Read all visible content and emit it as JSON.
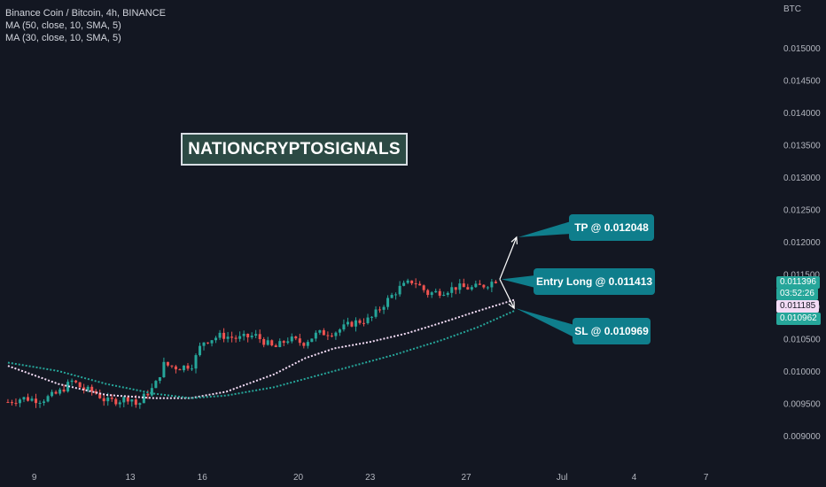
{
  "legend": {
    "title": "Binance Coin / Bitcoin, 4h, BINANCE",
    "ma50": "MA (50, close, 10, SMA, 5)",
    "ma30": "MA (30, close, 10, SMA, 5)"
  },
  "watermark": "NATIONCRYPTOSIGNALS",
  "callouts": {
    "tp": "TP @ 0.012048",
    "entry": "Entry Long @ 0.011413",
    "sl": "SL @ 0.010969"
  },
  "price_tags": {
    "current_price": "0.011396",
    "countdown": "03:52:26",
    "ma_pink": "0.011185",
    "ma_green": "0.010962"
  },
  "colors": {
    "background": "#131722",
    "up": "#26a69a",
    "down": "#ef5350",
    "ma_pink": "#f3dcf5",
    "ma_green": "#26a69a",
    "callout": "#0f7e8c"
  },
  "chart_data": {
    "type": "candlestick",
    "title": "Binance Coin / Bitcoin, 4h, BINANCE",
    "currency": "BTC",
    "ylim": [
      0.0087,
      0.0158
    ],
    "y_ticks": [
      "0.009000",
      "0.009500",
      "0.010000",
      "0.010500",
      "0.011000",
      "0.011500",
      "0.012000",
      "0.012500",
      "0.013000",
      "0.013500",
      "0.014000",
      "0.014500",
      "0.015000"
    ],
    "x_ticks": [
      "9",
      "13",
      "16",
      "20",
      "23",
      "27",
      "Jul",
      "4",
      "7"
    ],
    "price_path": [
      {
        "day": 7.9,
        "price": 0.00952
      },
      {
        "day": 8.5,
        "price": 0.00958
      },
      {
        "day": 9.3,
        "price": 0.00955
      },
      {
        "day": 10.0,
        "price": 0.00966
      },
      {
        "day": 10.6,
        "price": 0.00985
      },
      {
        "day": 11.0,
        "price": 0.00972
      },
      {
        "day": 11.5,
        "price": 0.00968
      },
      {
        "day": 12.0,
        "price": 0.00953
      },
      {
        "day": 12.6,
        "price": 0.00955
      },
      {
        "day": 13.0,
        "price": 0.0096
      },
      {
        "day": 13.3,
        "price": 0.00945
      },
      {
        "day": 13.6,
        "price": 0.00962
      },
      {
        "day": 14.0,
        "price": 0.00975
      },
      {
        "day": 14.4,
        "price": 0.0101
      },
      {
        "day": 15.0,
        "price": 0.01005
      },
      {
        "day": 15.6,
        "price": 0.0101
      },
      {
        "day": 16.0,
        "price": 0.01045
      },
      {
        "day": 16.8,
        "price": 0.01055
      },
      {
        "day": 17.5,
        "price": 0.0105
      },
      {
        "day": 18.2,
        "price": 0.01055
      },
      {
        "day": 19.0,
        "price": 0.01035
      },
      {
        "day": 19.6,
        "price": 0.0105
      },
      {
        "day": 20.2,
        "price": 0.01043
      },
      {
        "day": 20.8,
        "price": 0.01058
      },
      {
        "day": 21.5,
        "price": 0.0106
      },
      {
        "day": 22.3,
        "price": 0.01075
      },
      {
        "day": 23.0,
        "price": 0.0108
      },
      {
        "day": 23.6,
        "price": 0.01105
      },
      {
        "day": 24.2,
        "price": 0.01128
      },
      {
        "day": 24.8,
        "price": 0.0114
      },
      {
        "day": 25.4,
        "price": 0.0112
      },
      {
        "day": 26.0,
        "price": 0.01123
      },
      {
        "day": 26.6,
        "price": 0.0113
      },
      {
        "day": 27.2,
        "price": 0.01128
      },
      {
        "day": 27.8,
        "price": 0.01133
      },
      {
        "day": 28.3,
        "price": 0.01142
      }
    ],
    "series": [
      {
        "name": "MA (50, close, 10, SMA, 5)",
        "color": "#f3dcf5",
        "points": [
          {
            "day": 7.9,
            "price": 0.01008
          },
          {
            "day": 10.0,
            "price": 0.0098
          },
          {
            "day": 12.0,
            "price": 0.00963
          },
          {
            "day": 14.0,
            "price": 0.00958
          },
          {
            "day": 15.5,
            "price": 0.00958
          },
          {
            "day": 17.0,
            "price": 0.00968
          },
          {
            "day": 19.0,
            "price": 0.00995
          },
          {
            "day": 20.3,
            "price": 0.0102
          },
          {
            "day": 21.5,
            "price": 0.01035
          },
          {
            "day": 23.0,
            "price": 0.01045
          },
          {
            "day": 24.5,
            "price": 0.01058
          },
          {
            "day": 26.0,
            "price": 0.01075
          },
          {
            "day": 27.5,
            "price": 0.01093
          },
          {
            "day": 29.0,
            "price": 0.0111
          }
        ]
      },
      {
        "name": "MA (30, close, 10, SMA, 5)",
        "color": "#26a69a",
        "points": [
          {
            "day": 7.9,
            "price": 0.01013
          },
          {
            "day": 10.0,
            "price": 0.01
          },
          {
            "day": 12.0,
            "price": 0.0098
          },
          {
            "day": 14.0,
            "price": 0.00965
          },
          {
            "day": 15.5,
            "price": 0.00958
          },
          {
            "day": 17.0,
            "price": 0.00962
          },
          {
            "day": 19.0,
            "price": 0.00975
          },
          {
            "day": 20.5,
            "price": 0.0099
          },
          {
            "day": 22.0,
            "price": 0.01005
          },
          {
            "day": 24.0,
            "price": 0.01025
          },
          {
            "day": 26.0,
            "price": 0.01048
          },
          {
            "day": 27.5,
            "price": 0.01068
          },
          {
            "day": 29.0,
            "price": 0.01093
          }
        ]
      }
    ],
    "arrows": [
      {
        "from_day": 28.4,
        "from_price": 0.01142,
        "to_day": 29.1,
        "to_price": 0.01207
      },
      {
        "from_day": 28.4,
        "from_price": 0.01142,
        "to_day": 29.0,
        "to_price": 0.01097
      }
    ],
    "grid": false
  }
}
